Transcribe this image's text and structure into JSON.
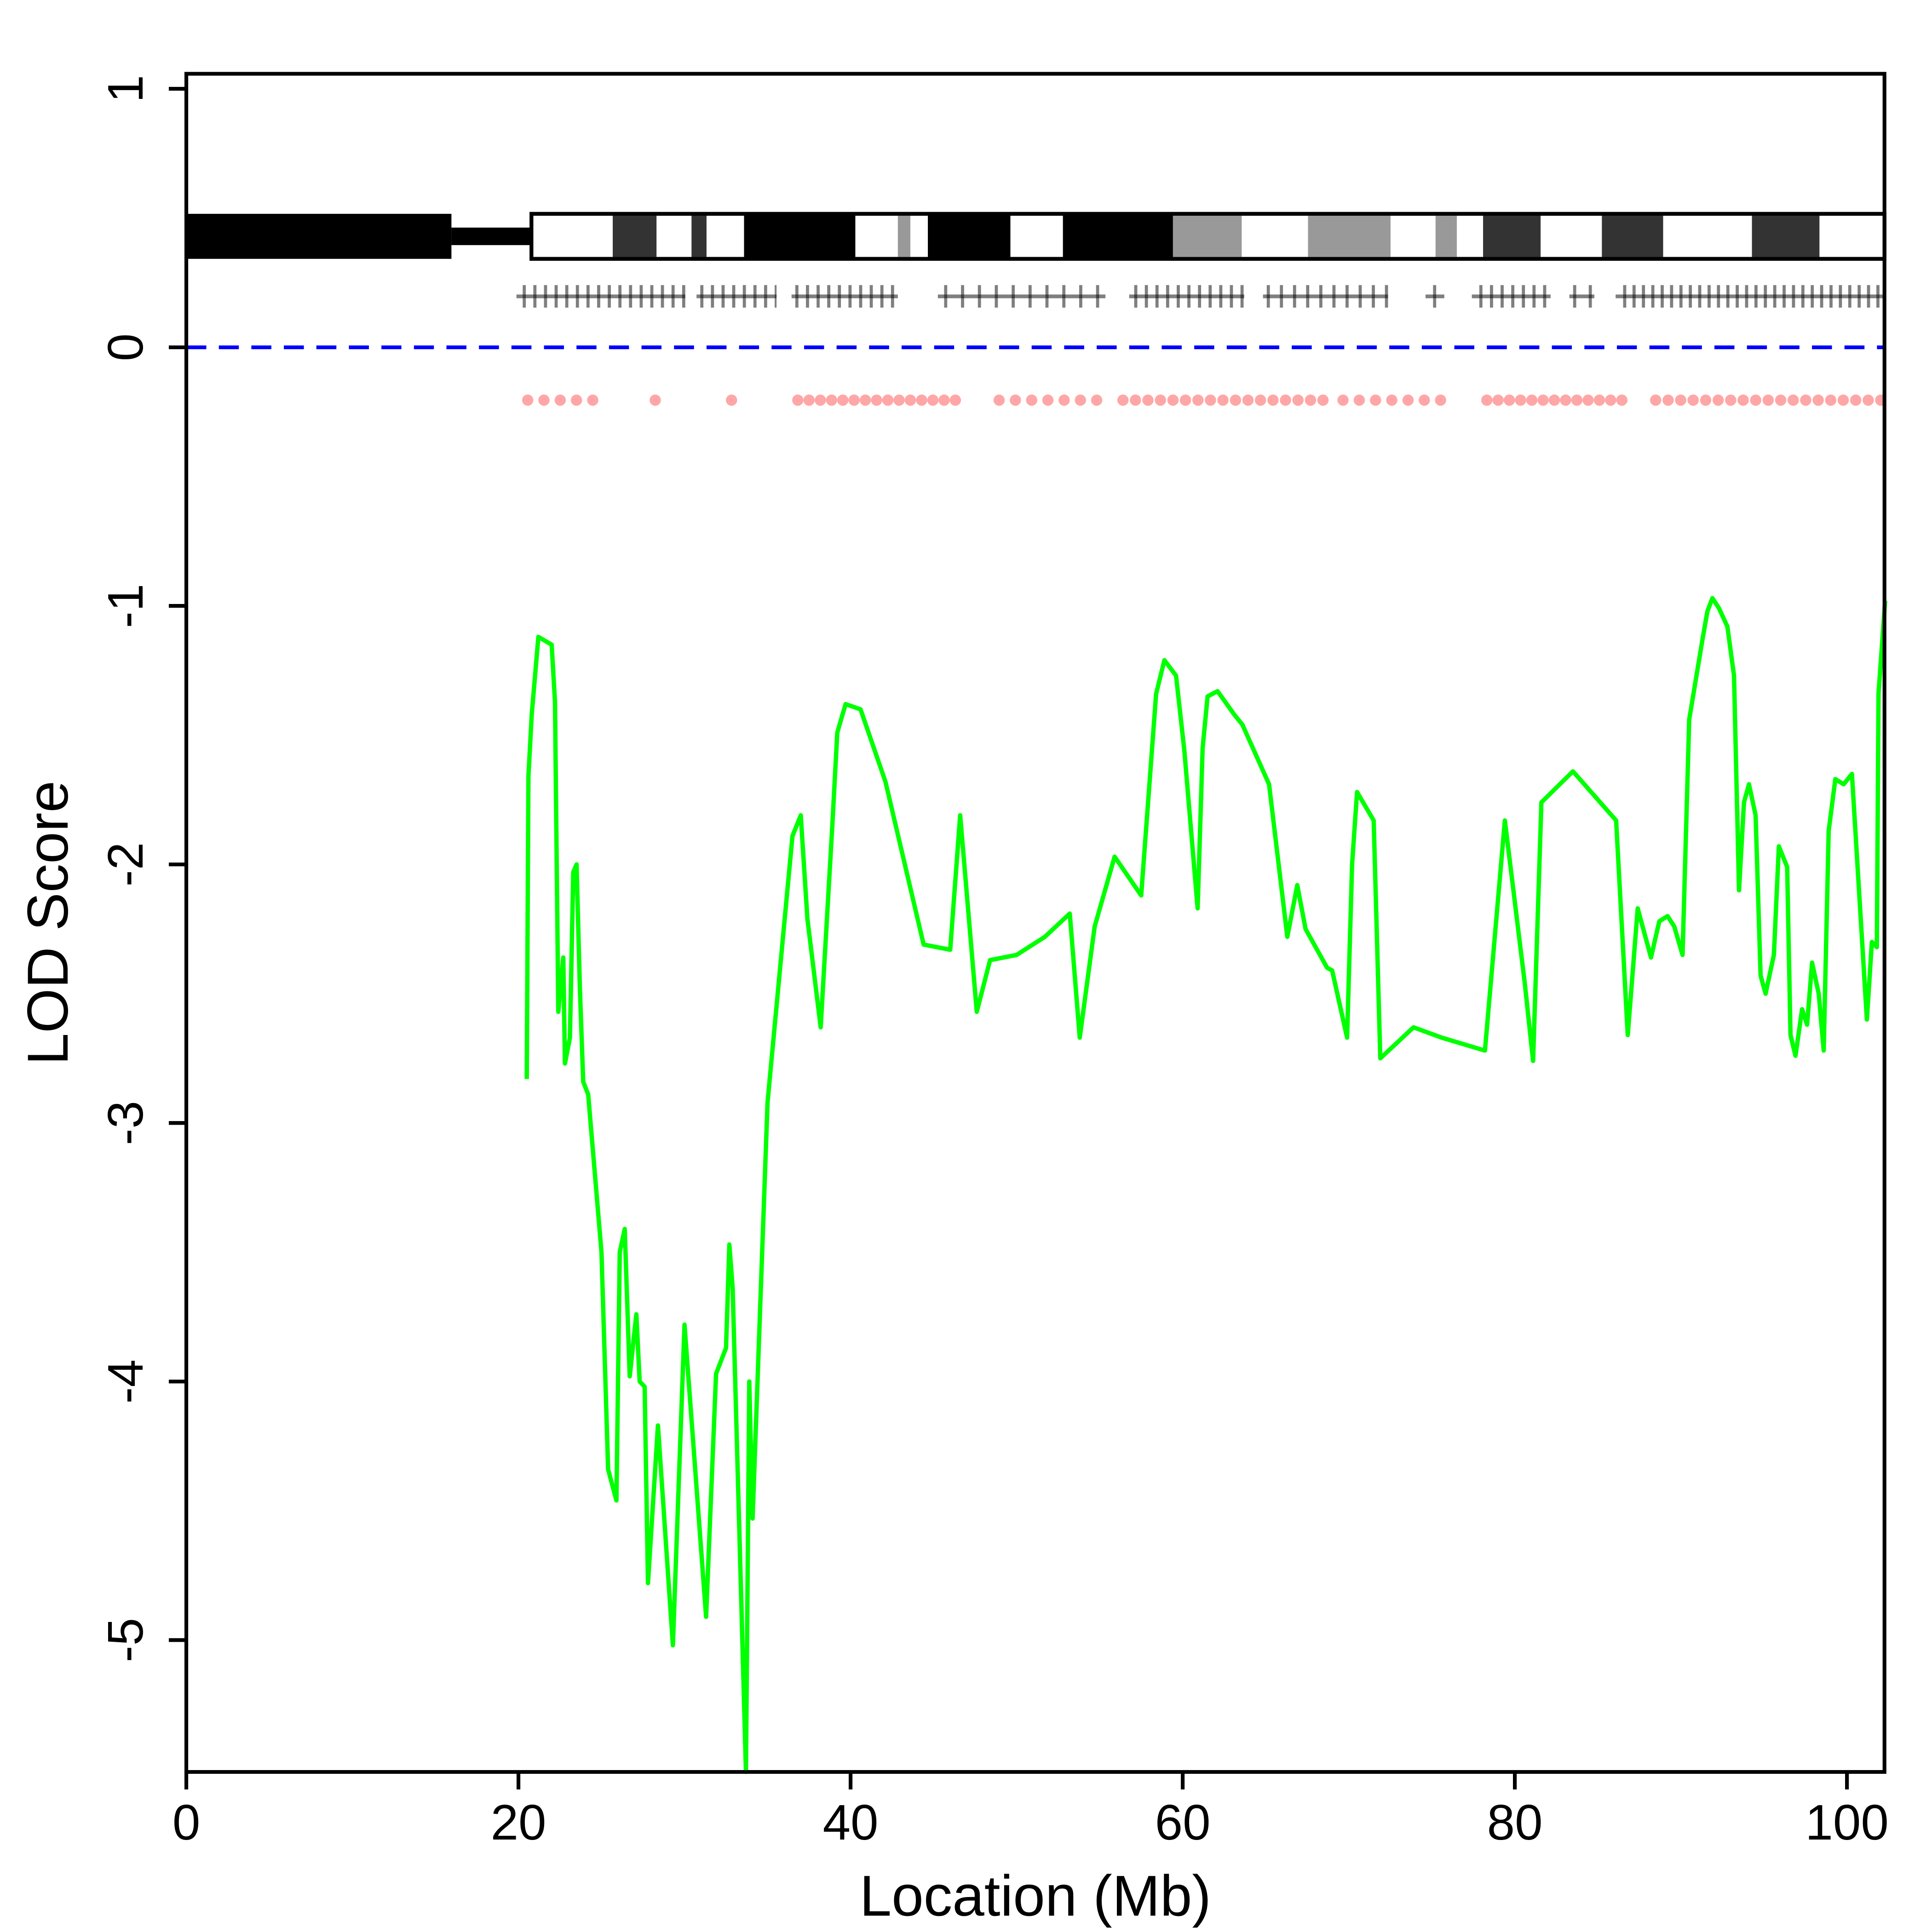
{
  "chart_data": {
    "type": "line",
    "x_label": "Location (Mb)",
    "y_label": "LOD Score",
    "color": "#00ff00",
    "x": [
      20.5,
      20.6,
      20.8,
      21.2,
      22.0,
      22.2,
      22.4,
      22.7,
      22.8,
      23.1,
      23.3,
      23.5,
      23.7,
      23.9,
      24.2,
      25.0,
      25.4,
      25.9,
      26.1,
      26.4,
      26.7,
      27.1,
      27.3,
      27.6,
      27.8,
      28.4,
      29.3,
      30.0,
      31.3,
      31.9,
      32.5,
      32.7,
      32.9,
      33.7,
      33.9,
      34.1,
      35.0,
      36.5,
      37.0,
      37.4,
      38.2,
      38.9,
      39.2,
      39.7,
      40.6,
      42.1,
      44.4,
      46.0,
      46.6,
      47.6,
      48.4,
      50.0,
      51.7,
      53.2,
      53.8,
      54.7,
      55.9,
      57.5,
      58.4,
      58.9,
      59.6,
      60.1,
      60.9,
      61.2,
      61.5,
      62.1,
      63.1,
      63.6,
      65.2,
      66.3,
      66.9,
      67.4,
      68.7,
      69.0,
      69.9,
      70.2,
      70.5,
      71.5,
      71.9,
      73.9,
      75.6,
      78.2,
      79.4,
      80.6,
      81.1,
      81.6,
      83.5,
      86.1,
      86.8,
      87.4,
      88.2,
      88.7,
      89.2,
      89.6,
      90.1,
      90.5,
      91.3,
      91.6,
      91.9,
      92.3,
      92.8,
      93.2,
      93.5,
      93.8,
      94.1,
      94.5,
      94.8,
      95.1,
      95.6,
      95.9,
      96.4,
      96.6,
      96.9,
      97.3,
      97.6,
      97.9,
      98.3,
      98.6,
      98.9,
      99.3,
      99.8,
      100.3,
      101.2,
      101.5,
      101.8,
      101.9,
      102.3
    ],
    "values": [
      -2.83,
      -1.66,
      -1.42,
      -1.12,
      -1.15,
      -1.37,
      -2.57,
      -2.36,
      -2.77,
      -2.67,
      -2.03,
      -2.0,
      -2.48,
      -2.84,
      -2.89,
      -3.5,
      -4.34,
      -4.46,
      -3.5,
      -3.41,
      -3.98,
      -3.74,
      -4.0,
      -4.02,
      -4.78,
      -4.17,
      -5.02,
      -3.78,
      -4.91,
      -3.97,
      -3.87,
      -3.47,
      -3.64,
      -5.51,
      -4.0,
      -4.53,
      -2.92,
      -1.89,
      -1.81,
      -2.21,
      -2.63,
      -1.85,
      -1.49,
      -1.38,
      -1.4,
      -1.68,
      -2.31,
      -2.33,
      -1.81,
      -2.57,
      -2.37,
      -2.35,
      -2.28,
      -2.19,
      -2.67,
      -2.24,
      -1.97,
      -2.12,
      -1.34,
      -1.21,
      -1.27,
      -1.56,
      -2.17,
      -1.55,
      -1.35,
      -1.33,
      -1.42,
      -1.46,
      -1.69,
      -2.28,
      -2.08,
      -2.25,
      -2.4,
      -2.41,
      -2.67,
      -2.0,
      -1.72,
      -1.83,
      -2.75,
      -2.63,
      -2.67,
      -2.72,
      -1.83,
      -2.46,
      -2.76,
      -1.76,
      -1.64,
      -1.83,
      -2.66,
      -2.17,
      -2.36,
      -2.22,
      -2.2,
      -2.24,
      -2.35,
      -1.44,
      -1.13,
      -1.02,
      -0.97,
      -1.01,
      -1.08,
      -1.27,
      -2.1,
      -1.76,
      -1.69,
      -1.81,
      -2.43,
      -2.5,
      -2.35,
      -1.93,
      -2.01,
      -2.66,
      -2.74,
      -2.56,
      -2.62,
      -2.38,
      -2.5,
      -2.72,
      -1.87,
      -1.67,
      -1.69,
      -1.65,
      -2.6,
      -2.3,
      -2.32,
      -1.34,
      -0.98
    ],
    "xlim": [
      0,
      102.26
    ],
    "ylim": [
      -5.51,
      1.058
    ],
    "xticks": [
      0,
      20,
      40,
      60,
      80,
      100
    ],
    "yticks": [
      -5,
      -4,
      -3,
      -2,
      -1,
      0,
      1
    ],
    "hline": {
      "value": 0,
      "color": "#0000ff"
    }
  }
}
